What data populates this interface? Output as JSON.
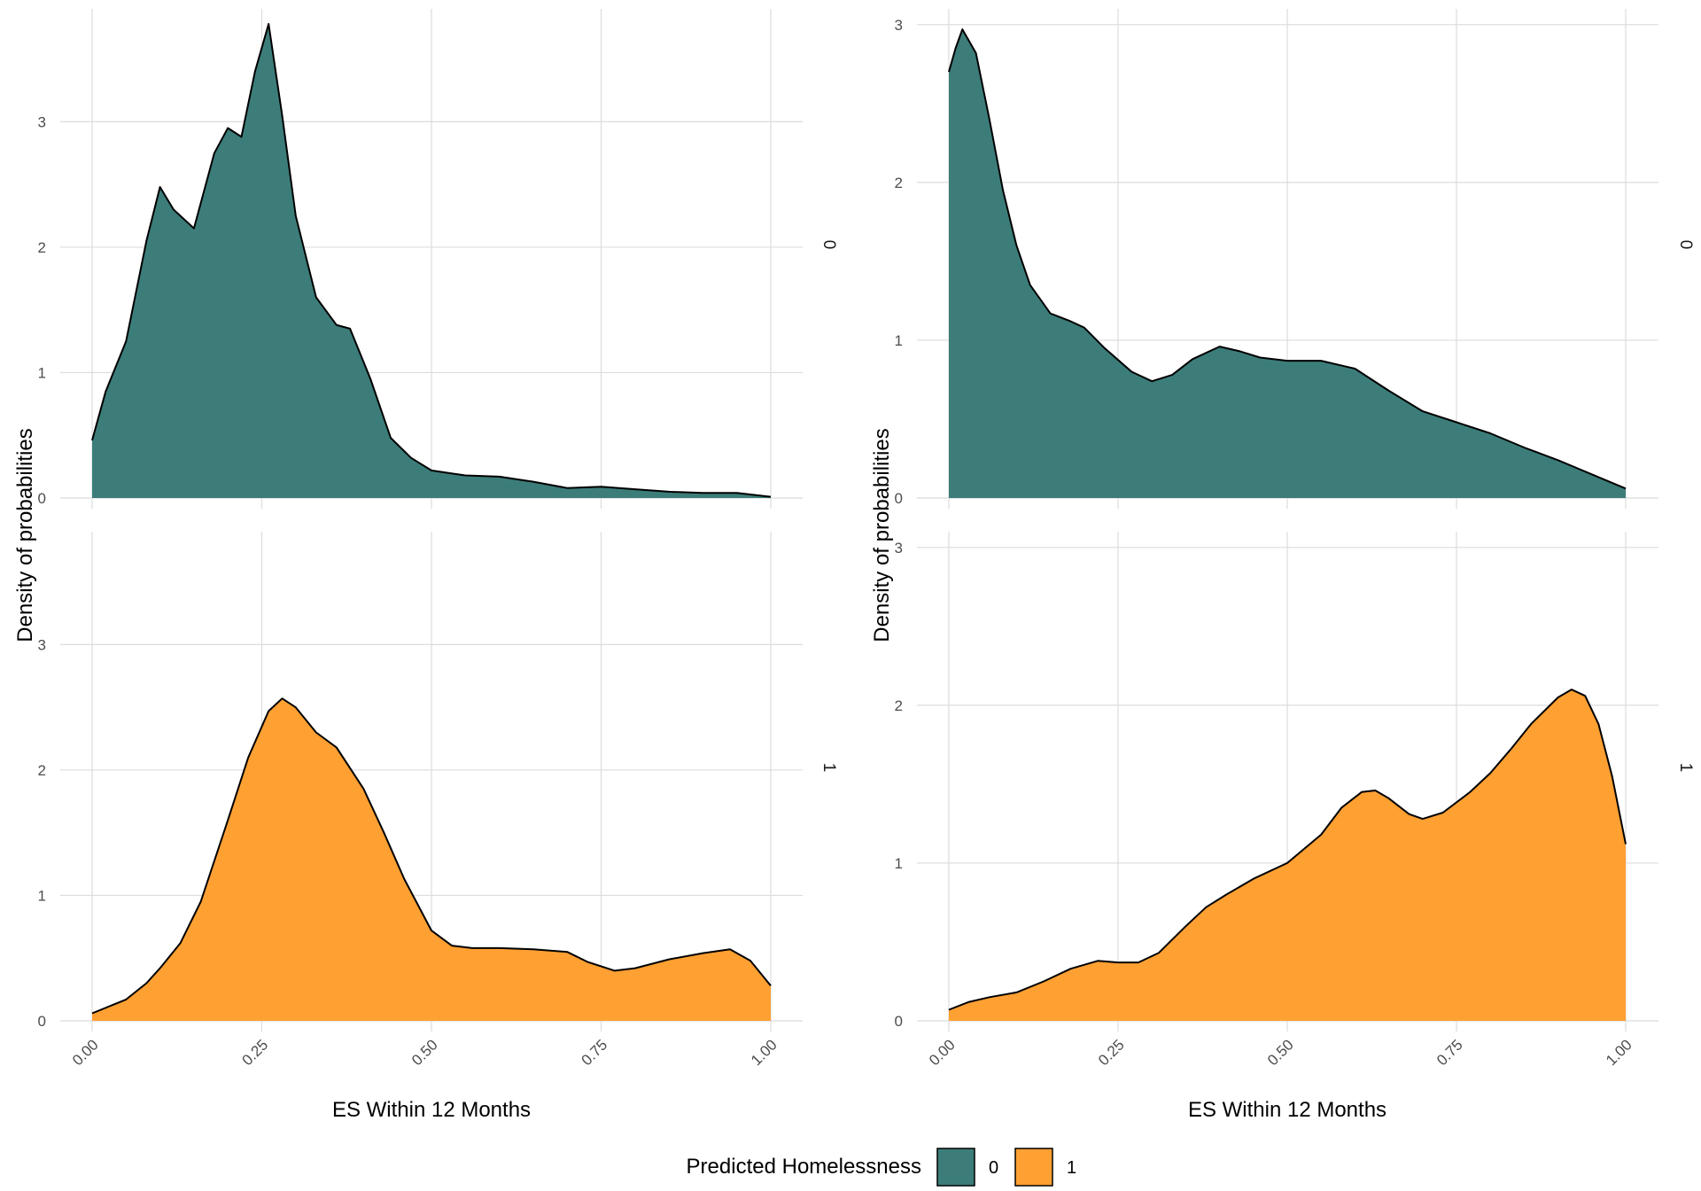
{
  "legend": {
    "title": "Predicted Homelessness",
    "entries": [
      {
        "label": "0",
        "color": "#3C7D7A"
      },
      {
        "label": "1",
        "color": "#FFA033"
      }
    ]
  },
  "chart_data": [
    {
      "type": "area",
      "xlabel": "ES Within 12 Months",
      "ylabel": "Density of probabilities",
      "xlim": [
        0,
        1
      ],
      "x_ticks": [
        "0.00",
        "0.25",
        "0.50",
        "0.75",
        "1.00"
      ],
      "grid": true,
      "panels": [
        {
          "strip": "0",
          "fill": "#3C7D7A",
          "ylim": [
            0,
            3.9
          ],
          "y_ticks": [
            "0",
            "1",
            "2",
            "3"
          ],
          "x": [
            0,
            0.02,
            0.05,
            0.08,
            0.1,
            0.12,
            0.15,
            0.18,
            0.2,
            0.22,
            0.24,
            0.26,
            0.28,
            0.3,
            0.33,
            0.36,
            0.38,
            0.41,
            0.44,
            0.47,
            0.5,
            0.55,
            0.6,
            0.65,
            0.7,
            0.75,
            0.8,
            0.85,
            0.9,
            0.95,
            1.0
          ],
          "y": [
            0.46,
            0.85,
            1.25,
            2.05,
            2.48,
            2.3,
            2.15,
            2.75,
            2.95,
            2.88,
            3.4,
            3.78,
            3.05,
            2.25,
            1.6,
            1.38,
            1.35,
            0.95,
            0.48,
            0.32,
            0.22,
            0.18,
            0.17,
            0.13,
            0.08,
            0.09,
            0.07,
            0.05,
            0.04,
            0.04,
            0.01
          ]
        },
        {
          "strip": "1",
          "fill": "#FFA033",
          "ylim": [
            0,
            3.9
          ],
          "y_ticks": [
            "0",
            "1",
            "2",
            "3"
          ],
          "x": [
            0,
            0.05,
            0.08,
            0.1,
            0.13,
            0.16,
            0.2,
            0.23,
            0.26,
            0.28,
            0.3,
            0.33,
            0.36,
            0.4,
            0.43,
            0.46,
            0.5,
            0.53,
            0.56,
            0.6,
            0.65,
            0.7,
            0.73,
            0.77,
            0.8,
            0.85,
            0.9,
            0.94,
            0.97,
            1.0
          ],
          "y": [
            0.06,
            0.17,
            0.3,
            0.42,
            0.62,
            0.95,
            1.6,
            2.1,
            2.47,
            2.57,
            2.5,
            2.3,
            2.18,
            1.85,
            1.5,
            1.13,
            0.72,
            0.6,
            0.58,
            0.58,
            0.57,
            0.55,
            0.47,
            0.4,
            0.42,
            0.49,
            0.54,
            0.57,
            0.48,
            0.28
          ]
        }
      ]
    },
    {
      "type": "area",
      "xlabel": "ES Within 12 Months",
      "ylabel": "Density of probabilities",
      "xlim": [
        0,
        1
      ],
      "x_ticks": [
        "0.00",
        "0.25",
        "0.50",
        "0.75",
        "1.00"
      ],
      "grid": true,
      "panels": [
        {
          "strip": "0",
          "fill": "#3C7D7A",
          "ylim": [
            0,
            3.1
          ],
          "y_ticks": [
            "0",
            "1",
            "2",
            "3"
          ],
          "x": [
            0,
            0.01,
            0.02,
            0.04,
            0.06,
            0.08,
            0.1,
            0.12,
            0.15,
            0.18,
            0.2,
            0.23,
            0.27,
            0.3,
            0.33,
            0.36,
            0.4,
            0.43,
            0.46,
            0.5,
            0.55,
            0.6,
            0.65,
            0.7,
            0.75,
            0.8,
            0.85,
            0.9,
            0.95,
            1.0
          ],
          "y": [
            2.7,
            2.85,
            2.97,
            2.82,
            2.4,
            1.95,
            1.6,
            1.35,
            1.17,
            1.12,
            1.08,
            0.95,
            0.8,
            0.74,
            0.78,
            0.88,
            0.96,
            0.93,
            0.89,
            0.87,
            0.87,
            0.82,
            0.68,
            0.55,
            0.48,
            0.41,
            0.32,
            0.24,
            0.15,
            0.06
          ]
        },
        {
          "strip": "1",
          "fill": "#FFA033",
          "ylim": [
            0,
            3.1
          ],
          "y_ticks": [
            "0",
            "1",
            "2",
            "3"
          ],
          "x": [
            0,
            0.03,
            0.06,
            0.1,
            0.14,
            0.18,
            0.22,
            0.25,
            0.28,
            0.31,
            0.35,
            0.38,
            0.41,
            0.45,
            0.5,
            0.55,
            0.58,
            0.61,
            0.63,
            0.65,
            0.68,
            0.7,
            0.73,
            0.77,
            0.8,
            0.83,
            0.86,
            0.9,
            0.92,
            0.94,
            0.96,
            0.98,
            1.0
          ],
          "y": [
            0.07,
            0.12,
            0.15,
            0.18,
            0.25,
            0.33,
            0.38,
            0.37,
            0.37,
            0.43,
            0.6,
            0.72,
            0.8,
            0.9,
            1.0,
            1.18,
            1.35,
            1.45,
            1.46,
            1.41,
            1.31,
            1.28,
            1.32,
            1.45,
            1.57,
            1.72,
            1.88,
            2.05,
            2.1,
            2.06,
            1.88,
            1.55,
            1.12
          ]
        }
      ]
    }
  ]
}
